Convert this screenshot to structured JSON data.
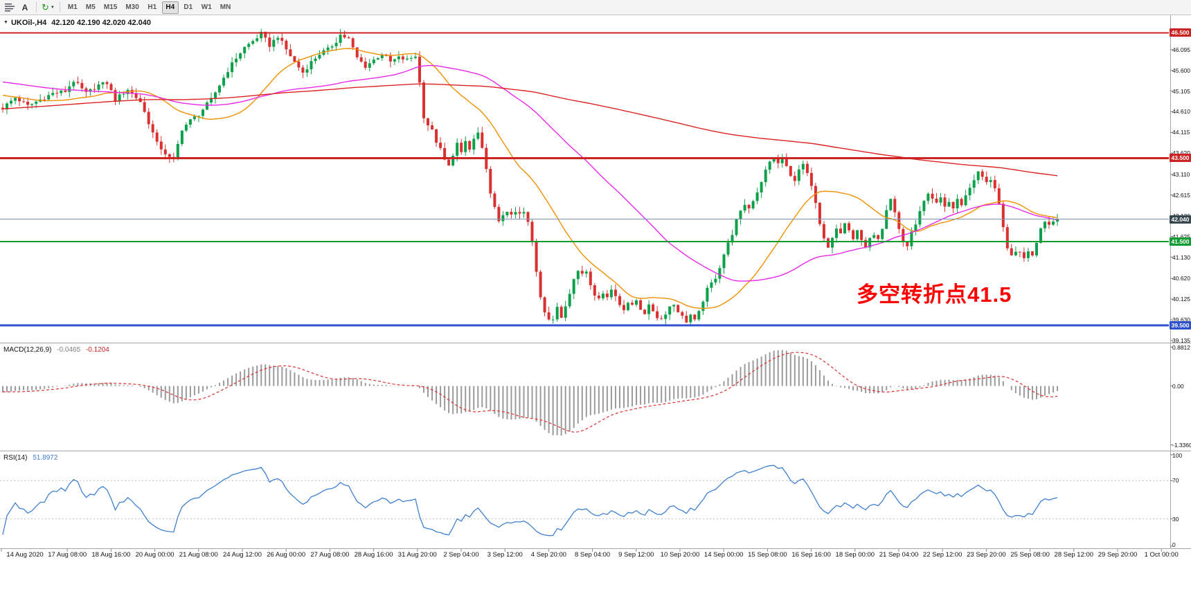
{
  "toolbar": {
    "a_label": "A",
    "cycle_glyph": "↻",
    "caret_glyph": "▼",
    "timeframes": [
      "M1",
      "M5",
      "M15",
      "M30",
      "H1",
      "H4",
      "D1",
      "W1",
      "MN"
    ],
    "active_timeframe": "H4"
  },
  "chart": {
    "title": {
      "expander": "▼",
      "symbol": "UKOil-,H4",
      "ohlc": "42.120 42.190 42.020 42.040"
    },
    "annotation": {
      "text": "多空转折点41.5",
      "color": "#FF0000"
    },
    "price_axis": {
      "ticks": [
        46.095,
        45.6,
        45.105,
        44.61,
        44.115,
        43.62,
        43.11,
        42.615,
        42.12,
        41.625,
        41.13,
        40.62,
        40.125,
        39.63,
        39.135
      ],
      "range": {
        "min": 39.1,
        "max": 46.92
      }
    },
    "levels": [
      {
        "label": "46.500",
        "value": 46.5,
        "color": "#cc2222",
        "line_color": "#cc2222",
        "width": 2,
        "type": "resistance"
      },
      {
        "label": "43.500",
        "value": 43.5,
        "color": "#cc2222",
        "line_color": "#cc2222",
        "width": 3,
        "type": "resistance"
      },
      {
        "label": "42.040",
        "value": 42.04,
        "color": "#37474f",
        "line_color": "#7a93b8",
        "width": 1,
        "type": "current-price"
      },
      {
        "label": "41.500",
        "value": 41.5,
        "color": "#109c30",
        "line_color": "#109c30",
        "width": 2,
        "type": "support"
      },
      {
        "label": "39.500",
        "value": 39.5,
        "color": "#2d50ce",
        "line_color": "#3050d0",
        "width": 3,
        "type": "support"
      }
    ],
    "time_labels": [
      "14 Aug 2020",
      "17 Aug 08:00",
      "18 Aug 16:00",
      "20 Aug 00:00",
      "21 Aug 08:00",
      "24 Aug 12:00",
      "26 Aug 00:00",
      "27 Aug 08:00",
      "28 Aug 16:00",
      "31 Aug 20:00",
      "2 Sep 04:00",
      "3 Sep 12:00",
      "4 Sep 20:00",
      "8 Sep 04:00",
      "9 Sep 12:00",
      "10 Sep 20:00",
      "14 Sep 00:00",
      "15 Sep 08:00",
      "16 Sep 16:00",
      "18 Sep 00:00",
      "21 Sep 04:00",
      "22 Sep 12:00",
      "23 Sep 20:00",
      "25 Sep 08:00",
      "28 Sep 12:00",
      "29 Sep 20:00",
      "1 Oct 00:00"
    ]
  },
  "macd": {
    "label": "MACD(12,26,9)",
    "value_main": "-0.0465",
    "value_signal": "-0.1204",
    "axis_ticks": [
      "0.8812",
      "0.00",
      "-1.3360"
    ],
    "axis_values": [
      0.8812,
      0,
      -1.336
    ],
    "range": {
      "min": -1.45,
      "max": 0.95
    }
  },
  "rsi": {
    "label": "RSI(14)",
    "value": "51.8972",
    "axis_ticks": [
      "100",
      "70",
      "30",
      "0"
    ],
    "axis_values": [
      100,
      70,
      30,
      0
    ],
    "levels": [
      70,
      30
    ]
  },
  "chart_data": {
    "type": "candlestick",
    "symbol": "UKOil-",
    "period": "H4",
    "bar_count": 254,
    "ohlc_last": {
      "open": 42.12,
      "high": 42.19,
      "low": 42.02,
      "close": 42.04
    },
    "close_path_anchors": [
      [
        0,
        44.7
      ],
      [
        3,
        44.95
      ],
      [
        6,
        44.75
      ],
      [
        9,
        44.9
      ],
      [
        12,
        45.05
      ],
      [
        15,
        45.1
      ],
      [
        17,
        45.35
      ],
      [
        20,
        45.05
      ],
      [
        23,
        45.25
      ],
      [
        25,
        45.3
      ],
      [
        27,
        44.9
      ],
      [
        30,
        45.15
      ],
      [
        33,
        44.85
      ],
      [
        35,
        44.35
      ],
      [
        37,
        43.85
      ],
      [
        40,
        43.5
      ],
      [
        41,
        43.45
      ],
      [
        43,
        44.2
      ],
      [
        45,
        44.4
      ],
      [
        47,
        44.55
      ],
      [
        50,
        44.9
      ],
      [
        52,
        45.25
      ],
      [
        54,
        45.6
      ],
      [
        56,
        45.9
      ],
      [
        58,
        46.15
      ],
      [
        60,
        46.3
      ],
      [
        62,
        46.48
      ],
      [
        64,
        46.2
      ],
      [
        66,
        46.42
      ],
      [
        68,
        46.1
      ],
      [
        70,
        45.8
      ],
      [
        72,
        45.55
      ],
      [
        74,
        45.8
      ],
      [
        76,
        46.0
      ],
      [
        78,
        46.1
      ],
      [
        80,
        46.3
      ],
      [
        81,
        46.45
      ],
      [
        83,
        46.35
      ],
      [
        85,
        45.9
      ],
      [
        87,
        45.7
      ],
      [
        89,
        45.85
      ],
      [
        91,
        46.0
      ],
      [
        93,
        45.8
      ],
      [
        95,
        45.9
      ],
      [
        97,
        45.85
      ],
      [
        99,
        45.95
      ],
      [
        100,
        45.3
      ],
      [
        101,
        44.5
      ],
      [
        102,
        44.3
      ],
      [
        103,
        44.15
      ],
      [
        104,
        43.9
      ],
      [
        105,
        43.7
      ],
      [
        106,
        43.45
      ],
      [
        107,
        43.3
      ],
      [
        108,
        43.6
      ],
      [
        109,
        43.85
      ],
      [
        110,
        43.6
      ],
      [
        111,
        43.9
      ],
      [
        112,
        43.7
      ],
      [
        113,
        43.95
      ],
      [
        114,
        44.1
      ],
      [
        115,
        43.7
      ],
      [
        116,
        43.2
      ],
      [
        117,
        42.7
      ],
      [
        118,
        42.3
      ],
      [
        119,
        41.95
      ],
      [
        120,
        42.15
      ],
      [
        121,
        42.25
      ],
      [
        122,
        42.1
      ],
      [
        123,
        42.2
      ],
      [
        124,
        42.15
      ],
      [
        125,
        42.2
      ],
      [
        126,
        41.95
      ],
      [
        127,
        41.5
      ],
      [
        128,
        40.8
      ],
      [
        129,
        40.2
      ],
      [
        130,
        39.85
      ],
      [
        131,
        39.65
      ],
      [
        132,
        39.6
      ],
      [
        133,
        39.95
      ],
      [
        134,
        39.7
      ],
      [
        135,
        40.0
      ],
      [
        136,
        40.3
      ],
      [
        137,
        40.6
      ],
      [
        138,
        40.8
      ],
      [
        139,
        40.75
      ],
      [
        140,
        40.8
      ],
      [
        141,
        40.5
      ],
      [
        142,
        40.25
      ],
      [
        143,
        40.1
      ],
      [
        144,
        40.3
      ],
      [
        145,
        40.2
      ],
      [
        146,
        40.35
      ],
      [
        147,
        40.2
      ],
      [
        148,
        40.0
      ],
      [
        149,
        39.9
      ],
      [
        150,
        40.05
      ],
      [
        151,
        39.95
      ],
      [
        152,
        40.1
      ],
      [
        153,
        39.9
      ],
      [
        154,
        39.8
      ],
      [
        155,
        39.95
      ],
      [
        156,
        39.85
      ],
      [
        157,
        39.7
      ],
      [
        158,
        39.65
      ],
      [
        159,
        39.8
      ],
      [
        160,
        39.95
      ],
      [
        161,
        40.0
      ],
      [
        162,
        39.85
      ],
      [
        163,
        39.7
      ],
      [
        164,
        39.6
      ],
      [
        165,
        39.75
      ],
      [
        166,
        39.6
      ],
      [
        167,
        39.8
      ],
      [
        168,
        40.1
      ],
      [
        169,
        40.35
      ],
      [
        170,
        40.5
      ],
      [
        171,
        40.65
      ],
      [
        172,
        40.9
      ],
      [
        173,
        41.2
      ],
      [
        174,
        41.45
      ],
      [
        175,
        41.7
      ],
      [
        176,
        42.0
      ],
      [
        177,
        42.2
      ],
      [
        178,
        42.4
      ],
      [
        179,
        42.3
      ],
      [
        180,
        42.5
      ],
      [
        181,
        42.7
      ],
      [
        182,
        42.95
      ],
      [
        183,
        43.2
      ],
      [
        184,
        43.4
      ],
      [
        185,
        43.5
      ],
      [
        186,
        43.35
      ],
      [
        187,
        43.5
      ],
      [
        188,
        43.3
      ],
      [
        189,
        43.05
      ],
      [
        190,
        43.0
      ],
      [
        191,
        43.2
      ],
      [
        192,
        43.35
      ],
      [
        193,
        43.1
      ],
      [
        194,
        42.8
      ],
      [
        195,
        42.4
      ],
      [
        196,
        41.9
      ],
      [
        197,
        41.55
      ],
      [
        198,
        41.35
      ],
      [
        199,
        41.6
      ],
      [
        200,
        41.8
      ],
      [
        201,
        41.7
      ],
      [
        202,
        41.9
      ],
      [
        203,
        41.75
      ],
      [
        204,
        41.6
      ],
      [
        205,
        41.8
      ],
      [
        206,
        41.5
      ],
      [
        207,
        41.35
      ],
      [
        208,
        41.55
      ],
      [
        209,
        41.7
      ],
      [
        210,
        41.6
      ],
      [
        211,
        41.85
      ],
      [
        212,
        42.3
      ],
      [
        213,
        42.55
      ],
      [
        214,
        42.2
      ],
      [
        215,
        41.8
      ],
      [
        216,
        41.5
      ],
      [
        217,
        41.4
      ],
      [
        218,
        41.7
      ],
      [
        219,
        41.95
      ],
      [
        220,
        42.2
      ],
      [
        221,
        42.45
      ],
      [
        222,
        42.6
      ],
      [
        223,
        42.5
      ],
      [
        224,
        42.4
      ],
      [
        225,
        42.55
      ],
      [
        226,
        42.35
      ],
      [
        227,
        42.45
      ],
      [
        228,
        42.3
      ],
      [
        229,
        42.5
      ],
      [
        230,
        42.4
      ],
      [
        231,
        42.6
      ],
      [
        232,
        42.8
      ],
      [
        233,
        43.0
      ],
      [
        234,
        43.15
      ],
      [
        235,
        43.05
      ],
      [
        236,
        42.9
      ],
      [
        237,
        43.0
      ],
      [
        238,
        42.8
      ],
      [
        239,
        42.4
      ],
      [
        240,
        41.8
      ],
      [
        241,
        41.3
      ],
      [
        242,
        41.15
      ],
      [
        243,
        41.3
      ],
      [
        244,
        41.2
      ],
      [
        245,
        41.1
      ],
      [
        246,
        41.3
      ],
      [
        247,
        41.15
      ],
      [
        248,
        41.5
      ],
      [
        249,
        41.85
      ],
      [
        250,
        42.0
      ],
      [
        251,
        41.95
      ],
      [
        252,
        41.98
      ],
      [
        253,
        42.04
      ]
    ],
    "prehistory_anchors": [
      [
        -240,
        43.2
      ],
      [
        -200,
        43.8
      ],
      [
        -160,
        44.3
      ],
      [
        -120,
        44.9
      ],
      [
        -80,
        45.4
      ],
      [
        -50,
        45.7
      ],
      [
        -30,
        45.4
      ],
      [
        -15,
        45.1
      ],
      [
        -5,
        44.85
      ]
    ],
    "moving_averages": [
      {
        "name": "fast",
        "period": 24,
        "color": "#f09000"
      },
      {
        "name": "medium",
        "period": 60,
        "color": "#e928e9"
      },
      {
        "name": "slow",
        "period": 240,
        "color": "#dd2222"
      }
    ],
    "colors": {
      "up": "#0da04a",
      "down": "#d93030",
      "macd_hist": "#9a9a9a",
      "macd_signal": "#e03030",
      "rsi_line": "#3e7fd0"
    }
  }
}
